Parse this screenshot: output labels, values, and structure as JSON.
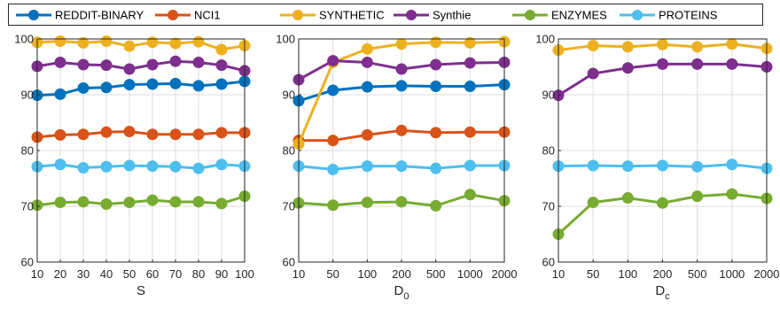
{
  "legend": {
    "entries": [
      {
        "name": "REDDIT-BINARY",
        "color": "#0072BD"
      },
      {
        "name": "NCI1",
        "color": "#D95319"
      },
      {
        "name": "SYNTHETIC",
        "color": "#EDB120"
      },
      {
        "name": "Synthie",
        "color": "#7E2F8E"
      },
      {
        "name": "ENZYMES",
        "color": "#77AC30"
      },
      {
        "name": "PROTEINS",
        "color": "#4DBEEE"
      }
    ]
  },
  "chart_data": [
    {
      "type": "line",
      "xlabel": "S",
      "xlabel_sub": "",
      "categories": [
        "10",
        "20",
        "30",
        "40",
        "50",
        "60",
        "70",
        "80",
        "90",
        "100"
      ],
      "ylim": [
        60,
        100
      ],
      "yticks": [
        "60",
        "70",
        "80",
        "90",
        "100"
      ],
      "grid": true,
      "series": [
        {
          "name": "REDDIT-BINARY",
          "values": [
            89.9,
            90.1,
            91.2,
            91.3,
            91.8,
            91.9,
            92.0,
            91.6,
            91.9,
            92.4
          ]
        },
        {
          "name": "NCI1",
          "values": [
            82.4,
            82.8,
            82.9,
            83.3,
            83.4,
            82.9,
            82.9,
            82.9,
            83.2,
            83.2
          ]
        },
        {
          "name": "SYNTHETIC",
          "values": [
            99.4,
            99.6,
            99.3,
            99.6,
            98.7,
            99.4,
            99.2,
            99.5,
            98.1,
            98.8
          ]
        },
        {
          "name": "Synthie",
          "values": [
            95.1,
            95.8,
            95.4,
            95.3,
            94.6,
            95.4,
            96.0,
            95.8,
            95.3,
            94.3
          ]
        },
        {
          "name": "ENZYMES",
          "values": [
            70.2,
            70.7,
            70.8,
            70.4,
            70.7,
            71.1,
            70.8,
            70.8,
            70.5,
            71.8
          ]
        },
        {
          "name": "PROTEINS",
          "values": [
            77.1,
            77.5,
            76.9,
            77.1,
            77.3,
            77.2,
            77.1,
            76.8,
            77.5,
            77.2
          ]
        }
      ]
    },
    {
      "type": "line",
      "xlabel": "D",
      "xlabel_sub": "0",
      "categories": [
        "10",
        "50",
        "100",
        "200",
        "500",
        "1000",
        "2000"
      ],
      "ylim": [
        60,
        100
      ],
      "yticks": [
        "60",
        "70",
        "80",
        "90",
        "100"
      ],
      "grid": true,
      "series": [
        {
          "name": "REDDIT-BINARY",
          "values": [
            88.9,
            90.8,
            91.4,
            91.6,
            91.5,
            91.5,
            91.8
          ]
        },
        {
          "name": "NCI1",
          "values": [
            81.8,
            81.8,
            82.8,
            83.6,
            83.2,
            83.3,
            83.3
          ]
        },
        {
          "name": "SYNTHETIC",
          "values": [
            81.2,
            95.8,
            98.2,
            99.1,
            99.4,
            99.3,
            99.5
          ]
        },
        {
          "name": "Synthie",
          "values": [
            92.7,
            96.1,
            95.8,
            94.6,
            95.4,
            95.7,
            95.8
          ]
        },
        {
          "name": "ENZYMES",
          "values": [
            70.6,
            70.2,
            70.7,
            70.8,
            70.1,
            72.1,
            71.0
          ]
        },
        {
          "name": "PROTEINS",
          "values": [
            77.2,
            76.6,
            77.2,
            77.2,
            76.8,
            77.3,
            77.3
          ]
        }
      ]
    },
    {
      "type": "line",
      "xlabel": "D",
      "xlabel_sub": "c",
      "categories": [
        "10",
        "50",
        "100",
        "200",
        "500",
        "1000",
        "2000"
      ],
      "ylim": [
        60,
        100
      ],
      "yticks": [
        "60",
        "70",
        "80",
        "90",
        "100"
      ],
      "grid": true,
      "series": [
        {
          "name": "SYNTHETIC",
          "values": [
            98.0,
            98.8,
            98.6,
            99.0,
            98.6,
            99.1,
            98.3
          ]
        },
        {
          "name": "Synthie",
          "values": [
            89.9,
            93.8,
            94.8,
            95.5,
            95.5,
            95.5,
            95.0
          ]
        },
        {
          "name": "ENZYMES",
          "values": [
            65.0,
            70.7,
            71.5,
            70.6,
            71.8,
            72.2,
            71.4
          ]
        },
        {
          "name": "PROTEINS",
          "values": [
            77.2,
            77.3,
            77.2,
            77.3,
            77.1,
            77.5,
            76.8
          ]
        }
      ]
    }
  ]
}
